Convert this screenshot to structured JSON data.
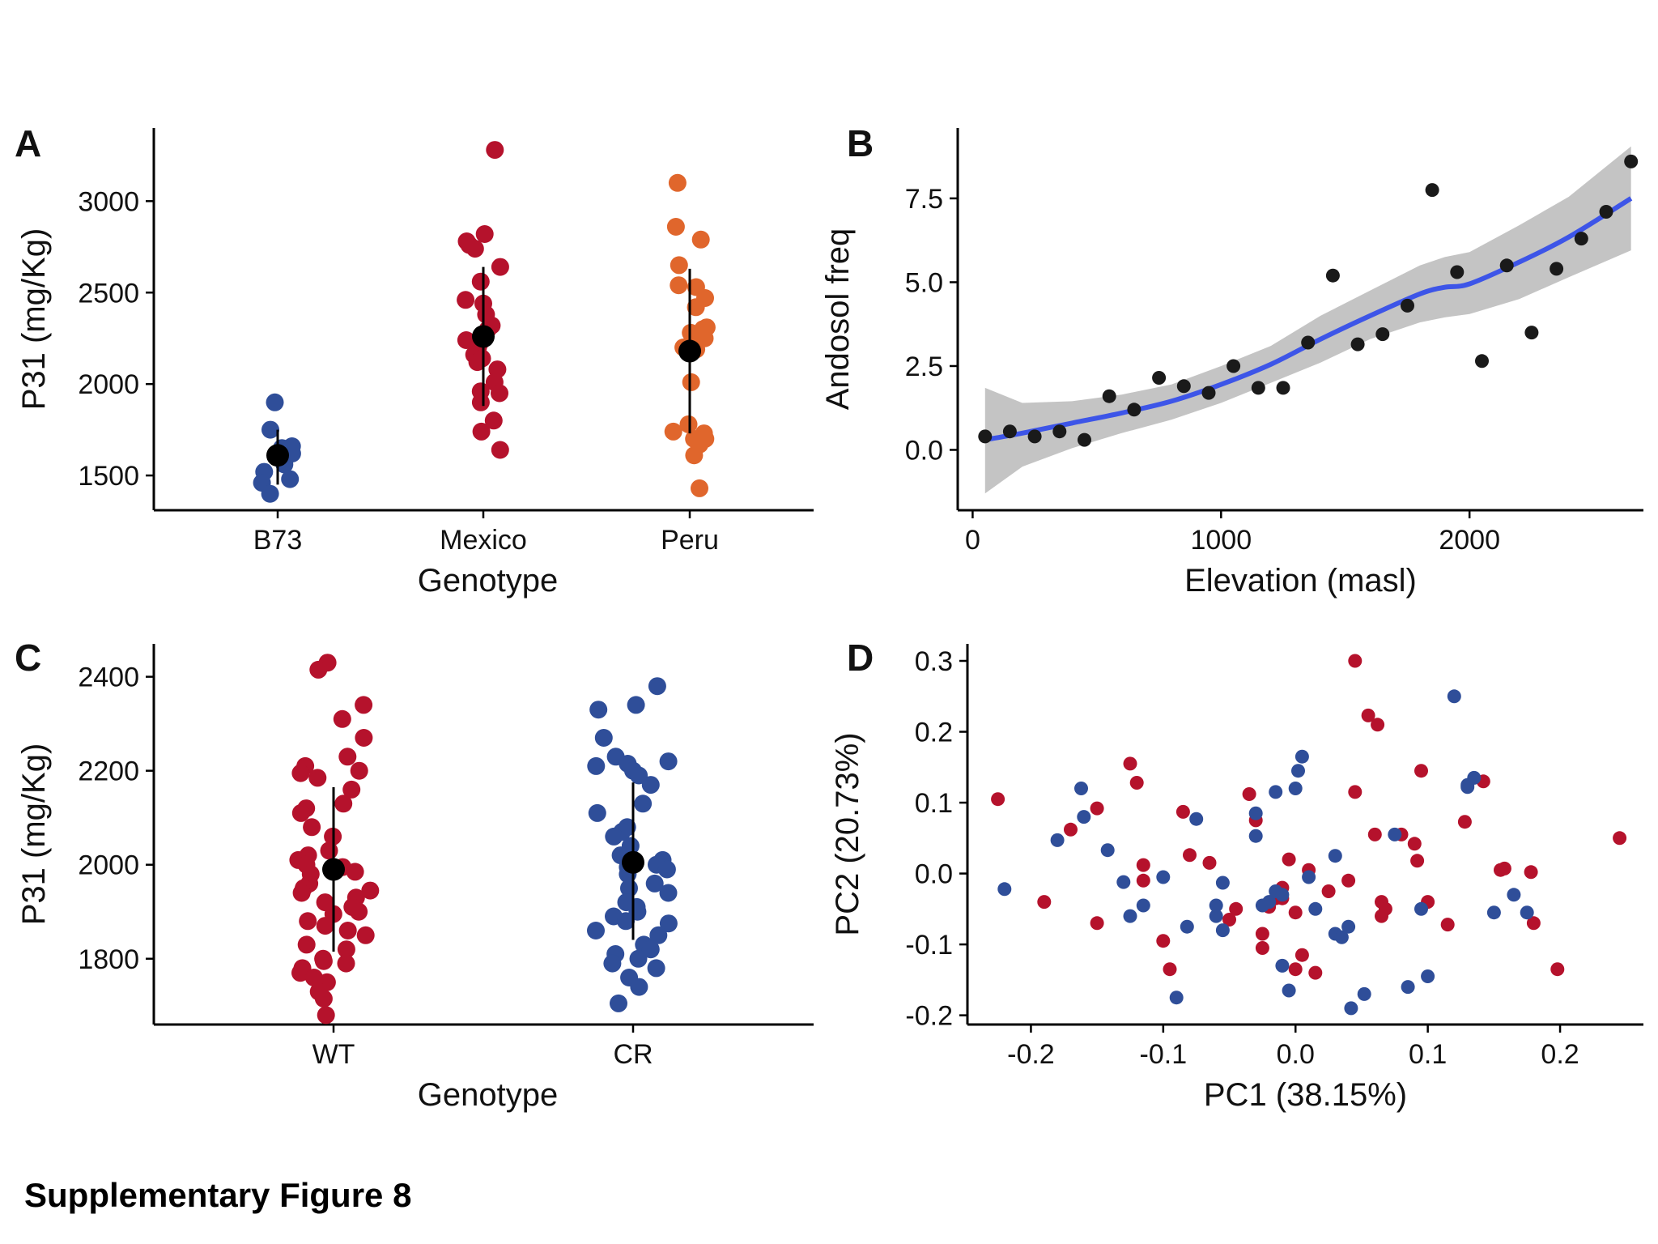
{
  "caption": "Supplementary Figure 8",
  "colors": {
    "red": "#B5122C",
    "blue": "#2F4E99",
    "orange": "#E0662C",
    "black": "#000000",
    "smooth_line": "#3D55E8",
    "ci_band": "#BEBEBE",
    "point_dark": "#1A1A1A"
  },
  "chart_data": [
    {
      "panel": "A",
      "type": "scatter",
      "xlabel": "Genotype",
      "ylabel": "P31 (mg/Kg)",
      "categories": [
        "B73",
        "Mexico",
        "Peru"
      ],
      "yticks": [
        1500,
        2000,
        2500,
        3000
      ],
      "ylim": [
        1310,
        3400
      ],
      "grid": false,
      "series": [
        {
          "category": "B73",
          "color": "#2F4E99",
          "values": [
            1900,
            1750,
            1660,
            1650,
            1620,
            1560,
            1520,
            1480,
            1460,
            1400
          ],
          "mean": 1610,
          "sd_low": 1450,
          "sd_high": 1750
        },
        {
          "category": "Mexico",
          "color": "#B5122C",
          "values": [
            3280,
            2820,
            2780,
            2760,
            2740,
            2640,
            2560,
            2460,
            2440,
            2380,
            2320,
            2300,
            2240,
            2230,
            2200,
            2160,
            2140,
            2120,
            2080,
            2010,
            1960,
            1950,
            1900,
            1800,
            1740,
            1640
          ],
          "mean": 2260,
          "sd_low": 1880,
          "sd_high": 2640
        },
        {
          "category": "Peru",
          "color": "#E0662C",
          "values": [
            3100,
            2860,
            2790,
            2650,
            2540,
            2530,
            2470,
            2420,
            2310,
            2300,
            2280,
            2250,
            2220,
            2200,
            2190,
            2010,
            1780,
            1740,
            1730,
            1700,
            1700,
            1670,
            1610,
            1430
          ],
          "mean": 2180,
          "sd_low": 1730,
          "sd_high": 2630
        }
      ]
    },
    {
      "panel": "B",
      "type": "scatter",
      "xlabel": "Elevation (masl)",
      "ylabel": "Andosol freq",
      "xticks": [
        0,
        1000,
        2000
      ],
      "yticks": [
        0.0,
        2.5,
        5.0,
        7.5
      ],
      "xlim": [
        -60,
        2700
      ],
      "ylim": [
        -1.8,
        9.6
      ],
      "grid": false,
      "points": {
        "x": [
          50,
          150,
          250,
          350,
          450,
          550,
          650,
          750,
          850,
          950,
          1050,
          1150,
          1250,
          1350,
          1450,
          1550,
          1650,
          1750,
          1850,
          1950,
          2050,
          2150,
          2250,
          2350,
          2450,
          2550,
          2650
        ],
        "y": [
          0.4,
          0.55,
          0.4,
          0.55,
          0.3,
          1.6,
          1.2,
          2.15,
          1.9,
          1.7,
          2.5,
          1.85,
          1.85,
          3.2,
          5.2,
          3.15,
          3.45,
          4.3,
          7.75,
          5.3,
          2.65,
          5.5,
          3.5,
          5.4,
          6.3,
          7.1,
          8.6
        ]
      },
      "smooth": {
        "x": [
          50,
          200,
          400,
          600,
          800,
          1000,
          1200,
          1400,
          1600,
          1800,
          1900,
          2000,
          2200,
          2400,
          2650
        ],
        "y": [
          0.3,
          0.5,
          0.8,
          1.1,
          1.45,
          1.95,
          2.55,
          3.3,
          4.0,
          4.65,
          4.85,
          4.95,
          5.6,
          6.35,
          7.5
        ],
        "ci_low": [
          -1.3,
          -0.5,
          0.05,
          0.5,
          0.9,
          1.4,
          2.0,
          2.6,
          3.3,
          3.8,
          3.95,
          4.05,
          4.5,
          5.15,
          5.95
        ],
        "ci_high": [
          1.85,
          1.4,
          1.45,
          1.65,
          1.95,
          2.5,
          3.1,
          4.0,
          4.75,
          5.5,
          5.75,
          5.9,
          6.7,
          7.55,
          9.05
        ]
      }
    },
    {
      "panel": "C",
      "type": "scatter",
      "xlabel": "Genotype",
      "ylabel": "P31 (mg/Kg)",
      "categories": [
        "WT",
        "CR"
      ],
      "yticks": [
        1800,
        2000,
        2200,
        2400
      ],
      "ylim": [
        1660,
        2470
      ],
      "grid": false,
      "series": [
        {
          "category": "WT",
          "color": "#B5122C",
          "values": [
            2430,
            2415,
            2340,
            2310,
            2270,
            2230,
            2210,
            2200,
            2195,
            2185,
            2160,
            2130,
            2120,
            2110,
            2080,
            2060,
            2030,
            2020,
            2010,
            2000,
            1995,
            1985,
            1980,
            1960,
            1950,
            1945,
            1940,
            1930,
            1920,
            1910,
            1900,
            1895,
            1880,
            1870,
            1860,
            1850,
            1830,
            1820,
            1800,
            1795,
            1790,
            1780,
            1770,
            1760,
            1750,
            1730,
            1715,
            1680
          ],
          "mean": 1990,
          "sd_low": 1815,
          "sd_high": 2165
        },
        {
          "category": "CR",
          "color": "#2F4E99",
          "values": [
            2380,
            2340,
            2330,
            2270,
            2230,
            2220,
            2215,
            2210,
            2200,
            2190,
            2170,
            2130,
            2110,
            2080,
            2070,
            2060,
            2040,
            2020,
            2010,
            2000,
            1995,
            1990,
            1980,
            1960,
            1950,
            1940,
            1920,
            1910,
            1900,
            1890,
            1880,
            1875,
            1860,
            1850,
            1830,
            1820,
            1810,
            1800,
            1790,
            1780,
            1760,
            1740,
            1705
          ],
          "mean": 2005,
          "sd_low": 1840,
          "sd_high": 2175
        }
      ]
    },
    {
      "panel": "D",
      "type": "scatter",
      "xlabel": "PC1 (38.15%)",
      "ylabel": "PC2 (20.73%)",
      "xticks": [
        -0.2,
        -0.1,
        0.0,
        0.1,
        0.2
      ],
      "xtick_labels": [
        "-0.2",
        "-0.1",
        "0.0",
        "0.1",
        "0.2"
      ],
      "yticks": [
        -0.2,
        -0.1,
        0.0,
        0.1,
        0.2,
        0.3
      ],
      "ytick_labels": [
        "-0.2",
        "-0.1",
        "0.0",
        "0.1",
        "0.2",
        "0.3"
      ],
      "xlim": [
        -0.248,
        0.263
      ],
      "ylim": [
        -0.213,
        0.324
      ],
      "grid": false,
      "series": [
        {
          "color": "#B5122C",
          "x": [
            -0.225,
            -0.19,
            -0.17,
            -0.15,
            -0.15,
            -0.125,
            -0.12,
            -0.115,
            -0.115,
            -0.1,
            -0.095,
            -0.085,
            -0.08,
            -0.065,
            -0.05,
            -0.045,
            -0.035,
            -0.03,
            -0.025,
            -0.025,
            -0.02,
            -0.015,
            -0.01,
            -0.01,
            -0.005,
            0.0,
            0.0,
            0.005,
            0.01,
            0.015,
            0.025,
            0.04,
            0.045,
            0.045,
            0.055,
            0.06,
            0.062,
            0.065,
            0.065,
            0.068,
            0.08,
            0.09,
            0.092,
            0.095,
            0.1,
            0.115,
            0.128,
            0.142,
            0.155,
            0.158,
            0.178,
            0.18,
            0.198,
            0.245
          ],
          "y": [
            0.105,
            -0.04,
            0.062,
            0.092,
            -0.07,
            0.155,
            0.128,
            0.012,
            -0.01,
            -0.095,
            -0.135,
            0.087,
            0.026,
            0.015,
            -0.065,
            -0.05,
            0.112,
            0.075,
            -0.085,
            -0.105,
            -0.047,
            -0.035,
            -0.02,
            -0.035,
            0.02,
            -0.055,
            -0.135,
            -0.115,
            0.005,
            -0.14,
            -0.025,
            -0.01,
            0.3,
            0.115,
            0.223,
            0.055,
            0.21,
            -0.04,
            -0.06,
            -0.05,
            0.055,
            0.042,
            0.018,
            0.145,
            -0.04,
            -0.072,
            0.073,
            0.13,
            0.005,
            0.007,
            0.002,
            -0.07,
            -0.135,
            0.05
          ]
        },
        {
          "color": "#2F4E99",
          "x": [
            -0.22,
            -0.18,
            -0.16,
            -0.162,
            -0.142,
            -0.13,
            -0.125,
            -0.115,
            -0.1,
            -0.09,
            -0.082,
            -0.075,
            -0.06,
            -0.06,
            -0.055,
            -0.055,
            -0.03,
            -0.03,
            -0.025,
            -0.02,
            -0.015,
            -0.015,
            -0.01,
            -0.01,
            -0.005,
            0.0,
            0.002,
            0.005,
            0.01,
            0.015,
            0.03,
            0.03,
            0.035,
            0.04,
            0.042,
            0.052,
            0.075,
            0.085,
            0.095,
            0.1,
            0.12,
            0.13,
            0.13,
            0.135,
            0.15,
            0.165,
            0.175
          ],
          "y": [
            -0.022,
            0.047,
            0.08,
            0.12,
            0.033,
            -0.012,
            -0.06,
            -0.045,
            -0.005,
            -0.175,
            -0.075,
            0.077,
            -0.06,
            -0.045,
            -0.013,
            -0.08,
            0.085,
            0.053,
            -0.045,
            -0.04,
            -0.025,
            0.115,
            -0.03,
            -0.13,
            -0.165,
            0.12,
            0.145,
            0.165,
            -0.005,
            -0.05,
            -0.085,
            0.025,
            -0.09,
            -0.075,
            -0.19,
            -0.17,
            0.055,
            -0.16,
            -0.05,
            -0.145,
            0.25,
            0.122,
            0.125,
            0.135,
            -0.055,
            -0.03,
            -0.055
          ]
        }
      ]
    }
  ]
}
